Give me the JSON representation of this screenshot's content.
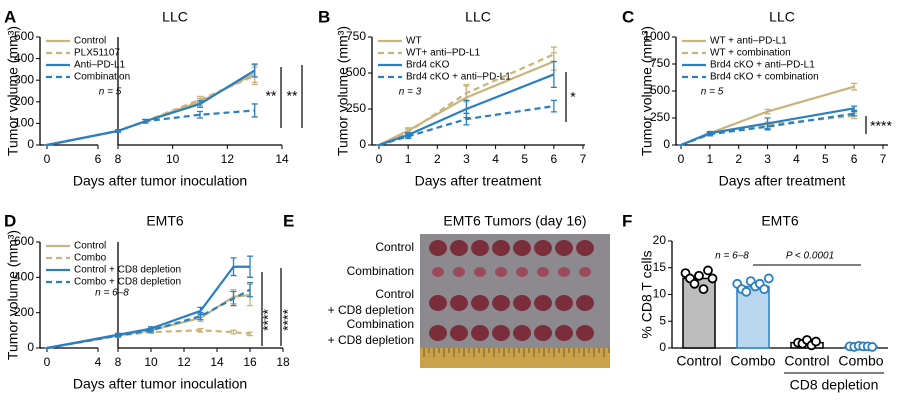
{
  "chart_data": [
    {
      "type": "line",
      "label": "A",
      "title": "LLC",
      "xlabel": "Days after tumor inoculation",
      "ylabel": "Tumor volume (mm³)",
      "x": [
        0,
        8,
        9,
        11,
        13
      ],
      "xlim": [
        0,
        14
      ],
      "xbreak": [
        6,
        8
      ],
      "xticks": [
        0,
        6,
        8,
        10,
        12,
        14
      ],
      "ylim": [
        0,
        500
      ],
      "yticks": [
        0,
        100,
        200,
        300,
        400,
        500
      ],
      "legend": "upper left",
      "series": [
        {
          "name": "Control",
          "color": "#c9b47c",
          "dashed": false,
          "values": [
            0,
            65,
            110,
            200,
            330
          ],
          "errors": [
            0,
            5,
            8,
            15,
            40
          ]
        },
        {
          "name": "PLX51107",
          "color": "#c9b47c",
          "dashed": true,
          "values": [
            0,
            65,
            110,
            210,
            320
          ],
          "errors": [
            0,
            5,
            8,
            15,
            40
          ]
        },
        {
          "name": "Anti–PD-L1",
          "color": "#2a7fc1",
          "dashed": false,
          "values": [
            0,
            65,
            110,
            190,
            345
          ],
          "errors": [
            0,
            5,
            8,
            15,
            30
          ]
        },
        {
          "name": "Combination",
          "color": "#2a7fc1",
          "dashed": true,
          "values": [
            0,
            65,
            110,
            140,
            160
          ],
          "errors": [
            0,
            5,
            8,
            15,
            30
          ]
        }
      ],
      "annotations": [
        "n = 5",
        "**",
        "**"
      ]
    },
    {
      "type": "line",
      "label": "B",
      "title": "LLC",
      "xlabel": "Days after treatment",
      "ylabel": "Tumor volume (mm³)",
      "x": [
        0,
        1,
        3,
        6
      ],
      "xlim": [
        0,
        7
      ],
      "xticks": [
        0,
        1,
        2,
        3,
        4,
        5,
        6,
        7
      ],
      "ylim": [
        0,
        750
      ],
      "yticks": [
        0,
        250,
        500,
        750
      ],
      "legend": "upper left",
      "series": [
        {
          "name": "WT",
          "color": "#c9b47c",
          "dashed": false,
          "values": [
            0,
            100,
            330,
            580
          ],
          "errors": [
            0,
            20,
            80,
            60
          ]
        },
        {
          "name": "WT+ anti–PD-L1",
          "color": "#c9b47c",
          "dashed": true,
          "values": [
            0,
            90,
            360,
            630
          ],
          "errors": [
            0,
            20,
            60,
            50
          ]
        },
        {
          "name": "Brd4 cKO",
          "color": "#2a7fc1",
          "dashed": false,
          "values": [
            0,
            70,
            250,
            490
          ],
          "errors": [
            0,
            15,
            60,
            90
          ]
        },
        {
          "name": "Brd4 cKO + anti–PD-L1",
          "color": "#2a7fc1",
          "dashed": true,
          "values": [
            0,
            60,
            180,
            270
          ],
          "errors": [
            0,
            15,
            40,
            40
          ]
        }
      ],
      "annotations": [
        "n = 3",
        "*"
      ]
    },
    {
      "type": "line",
      "label": "C",
      "title": "LLC",
      "xlabel": "Days after treatment",
      "ylabel": "Tumor volume (mm³)",
      "x": [
        0,
        1,
        3,
        6
      ],
      "xlim": [
        0,
        7
      ],
      "xticks": [
        0,
        1,
        2,
        3,
        4,
        5,
        6,
        7
      ],
      "ylim": [
        0,
        1000
      ],
      "yticks": [
        0,
        250,
        500,
        750,
        1000
      ],
      "legend": "upper left",
      "series": [
        {
          "name": "WT + anti–PD-L1",
          "color": "#c9b47c",
          "dashed": false,
          "values": [
            0,
            110,
            310,
            540
          ],
          "errors": [
            0,
            15,
            20,
            30
          ]
        },
        {
          "name": "WT + combination",
          "color": "#c9b47c",
          "dashed": true,
          "values": [
            0,
            100,
            190,
            270
          ],
          "errors": [
            0,
            15,
            20,
            25
          ]
        },
        {
          "name": "Brd4 cKO + anti–PD-L1",
          "color": "#2a7fc1",
          "dashed": false,
          "values": [
            0,
            110,
            200,
            340
          ],
          "errors": [
            0,
            15,
            50,
            20
          ]
        },
        {
          "name": "Brd4 cKO + combination",
          "color": "#2a7fc1",
          "dashed": true,
          "values": [
            0,
            100,
            170,
            290
          ],
          "errors": [
            0,
            15,
            30,
            20
          ]
        }
      ],
      "annotations": [
        "n = 5",
        "****"
      ]
    },
    {
      "type": "line",
      "label": "D",
      "title": "EMT6",
      "xlabel": "Days after tumor inoculation",
      "ylabel": "Tumor volume (mm³)",
      "x": [
        0,
        8,
        10,
        13,
        15,
        16
      ],
      "xlim": [
        0,
        18
      ],
      "xbreak": [
        4,
        8
      ],
      "xticks": [
        0,
        4,
        8,
        10,
        12,
        14,
        16,
        18
      ],
      "ylim": [
        0,
        600
      ],
      "yticks": [
        0,
        200,
        400,
        600
      ],
      "legend": "upper left",
      "series": [
        {
          "name": "Control",
          "color": "#c9b47c",
          "dashed": false,
          "values": [
            0,
            70,
            100,
            170,
            290,
            300
          ],
          "errors": [
            0,
            8,
            10,
            20,
            40,
            60
          ]
        },
        {
          "name": "Combo",
          "color": "#c9b47c",
          "dashed": true,
          "values": [
            0,
            70,
            90,
            100,
            90,
            80
          ],
          "errors": [
            0,
            8,
            8,
            10,
            10,
            10
          ]
        },
        {
          "name": "Control + CD8 depletion",
          "color": "#2a7fc1",
          "dashed": false,
          "values": [
            0,
            75,
            110,
            210,
            460,
            460
          ],
          "errors": [
            0,
            8,
            10,
            20,
            50,
            60
          ]
        },
        {
          "name": "Combo + CD8 depletion",
          "color": "#2a7fc1",
          "dashed": true,
          "values": [
            0,
            70,
            100,
            180,
            280,
            330
          ],
          "errors": [
            0,
            8,
            10,
            20,
            40,
            40
          ]
        }
      ],
      "annotations": [
        "n = 6–8",
        "****",
        "****"
      ]
    },
    {
      "type": "bar",
      "label": "F",
      "title": "EMT6",
      "ylabel": "% CD8 T cells",
      "categories": [
        "Control",
        "Combo",
        "Control",
        "Combo"
      ],
      "group_label": "CD8 depletion",
      "values": [
        13,
        11.5,
        1,
        0.3
      ],
      "colors": [
        "#bdbdbd",
        "#b9d6ef",
        "#ffffff",
        "#ffffff"
      ],
      "edgecolors": [
        "#000000",
        "#2a7fc1",
        "#000000",
        "#2a7fc1"
      ],
      "points": [
        [
          14,
          13,
          12,
          13.5,
          11,
          14.5,
          13
        ],
        [
          12,
          11,
          10.5,
          12.5,
          11.5,
          12,
          11,
          13
        ],
        [
          1,
          0.8,
          1.5,
          0.5,
          1.2
        ],
        [
          0.3,
          0.2,
          0.4,
          0.3,
          0.3,
          0.2
        ]
      ],
      "ylim": [
        0,
        20
      ],
      "yticks": [
        0,
        5,
        10,
        15,
        20
      ],
      "annotations": [
        "n = 6–8",
        "P < 0.0001"
      ]
    }
  ],
  "photo": {
    "label": "E",
    "title": "EMT6 Tumors (day 16)",
    "rows": [
      [
        "Control"
      ],
      [
        "Combination"
      ],
      [
        "Control",
        "+ CD8 depletion"
      ],
      [
        "Combination",
        "+ CD8 depletion"
      ]
    ]
  }
}
